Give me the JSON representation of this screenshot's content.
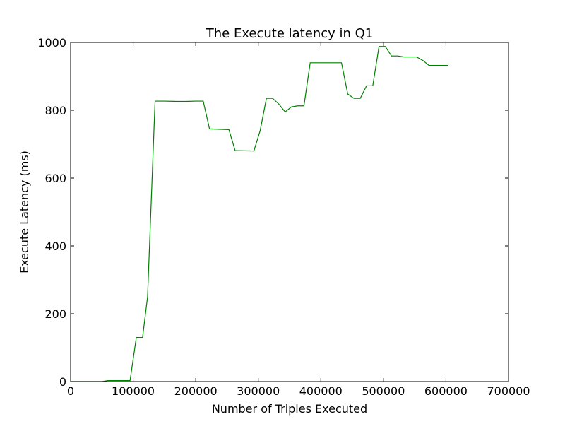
{
  "chart_data": {
    "type": "line",
    "title": "The Execute latency in Q1",
    "xlabel": "Number of Triples Executed",
    "ylabel": "Execute Latency (ms)",
    "xlim": [
      0,
      700000
    ],
    "ylim": [
      0,
      1000
    ],
    "xticks": [
      0,
      100000,
      200000,
      300000,
      400000,
      500000,
      600000,
      700000
    ],
    "xtick_labels": [
      "0",
      "100000",
      "200000",
      "300000",
      "400000",
      "500000",
      "600000",
      "700000"
    ],
    "yticks": [
      0,
      200,
      400,
      600,
      800,
      1000
    ],
    "ytick_labels": [
      "0",
      "200",
      "400",
      "600",
      "800",
      "1000"
    ],
    "grid": false,
    "series": [
      {
        "color": "#008000",
        "x": [
          0,
          50000,
          60000,
          95000,
          105000,
          115000,
          123000,
          135000,
          150000,
          170000,
          185000,
          200000,
          212000,
          222000,
          253000,
          263000,
          293000,
          303000,
          313000,
          323000,
          333000,
          343000,
          353000,
          363000,
          373000,
          383000,
          403000,
          433000,
          443000,
          453000,
          463000,
          473000,
          483000,
          493000,
          503000,
          513000,
          523000,
          533000,
          553000,
          563000,
          573000,
          583000,
          603000
        ],
        "y": [
          0,
          0,
          3,
          3,
          130,
          130,
          250,
          827,
          827,
          826,
          826,
          827,
          827,
          745,
          743,
          681,
          680,
          740,
          835,
          835,
          818,
          795,
          810,
          813,
          813,
          940,
          940,
          940,
          848,
          835,
          835,
          872,
          872,
          988,
          988,
          960,
          960,
          957,
          957,
          947,
          932,
          932,
          932
        ]
      }
    ]
  }
}
